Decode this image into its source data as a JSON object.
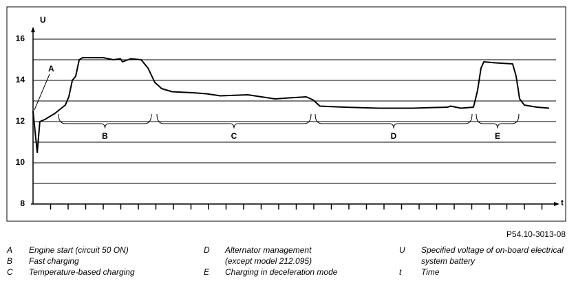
{
  "chart_data": {
    "type": "line",
    "y_label": "U",
    "x_label": "t",
    "ylim": [
      8,
      16.6
    ],
    "yticks": [
      8,
      10,
      12,
      14,
      16
    ],
    "minor_yticks": [
      9,
      11,
      13,
      15
    ],
    "xlim": [
      0,
      30
    ],
    "xticks": [
      1,
      2,
      3,
      4,
      5,
      6,
      7,
      8,
      9,
      10,
      11,
      12,
      13,
      14,
      15,
      16,
      17,
      18,
      19,
      20,
      21,
      22,
      23,
      24,
      25,
      26,
      27,
      28,
      29
    ],
    "grid": true,
    "color": "#000000",
    "x": [
      0,
      0.24,
      0.39,
      0.67,
      1.25,
      1.84,
      2.04,
      2.24,
      2.43,
      2.63,
      2.82,
      4.0,
      4.59,
      4.98,
      5.1,
      5.57,
      6.16,
      6.55,
      6.94,
      7.33,
      7.92,
      9.1,
      9.88,
      10.67,
      12.24,
      13.02,
      13.8,
      14.59,
      15.57,
      15.96,
      16.35,
      17.73,
      19.69,
      21.65,
      23.61,
      23.8,
      24.39,
      25.1,
      25.33,
      25.53,
      25.69,
      26.35,
      27.33,
      27.53,
      27.73,
      28.0,
      28.71,
      29.41
    ],
    "values": [
      12.5,
      10.5,
      12.0,
      12.1,
      12.4,
      12.8,
      13.2,
      14.0,
      14.2,
      15.0,
      15.1,
      15.1,
      15.0,
      15.05,
      14.9,
      15.05,
      15.0,
      14.6,
      13.9,
      13.6,
      13.45,
      13.4,
      13.35,
      13.25,
      13.3,
      13.2,
      13.1,
      13.15,
      13.2,
      13.05,
      12.75,
      12.7,
      12.65,
      12.65,
      12.7,
      12.75,
      12.65,
      12.7,
      13.5,
      14.6,
      14.9,
      14.85,
      14.8,
      14.2,
      13.1,
      12.8,
      12.7,
      12.65
    ],
    "annotations": [
      "A",
      "B",
      "C",
      "D",
      "E"
    ],
    "figure_code": "P54.10-3013-08",
    "legend": [
      {
        "key": "A",
        "text": [
          "Engine start (circuit 50 ON)"
        ]
      },
      {
        "key": "B",
        "text": [
          "Fast charging"
        ]
      },
      {
        "key": "C",
        "text": [
          "Temperature-based charging"
        ]
      },
      {
        "key": "D",
        "text": [
          "Alternator management",
          "(except model 212.095)"
        ]
      },
      {
        "key": "E",
        "text": [
          "Charging in deceleration mode"
        ]
      },
      {
        "key": "U",
        "text": [
          "Specified voltage of on-board electrical",
          "system battery"
        ]
      },
      {
        "key": "t",
        "text": [
          "Time"
        ]
      }
    ]
  }
}
